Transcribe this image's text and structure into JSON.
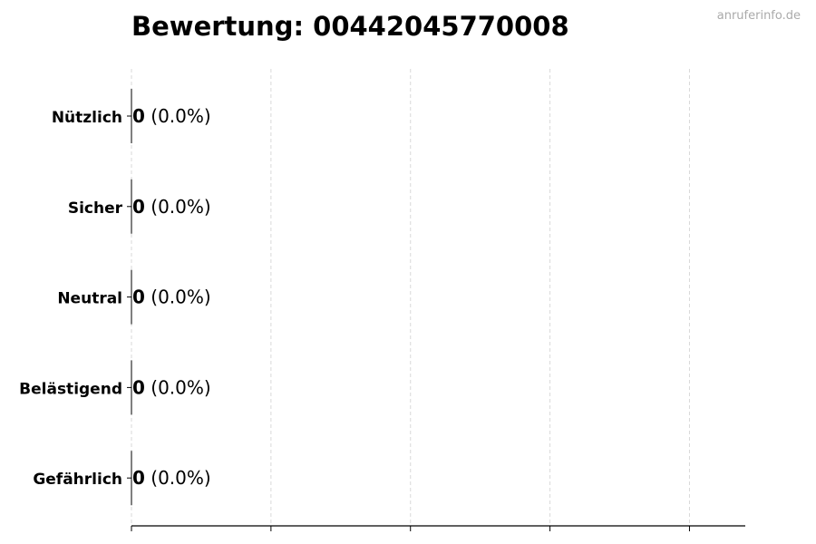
{
  "title": "Bewertung: 00442045770008",
  "watermark": "anruferinfo.de",
  "chart_data": {
    "type": "bar",
    "orientation": "horizontal",
    "title": "Bewertung: 00442045770008",
    "categories": [
      "Nützlich",
      "Sicher",
      "Neutral",
      "Belästigend",
      "Gefährlich"
    ],
    "values": [
      0,
      0,
      0,
      0,
      0
    ],
    "data_labels": [
      {
        "count": "0",
        "percent": "(0.0%)"
      },
      {
        "count": "0",
        "percent": "(0.0%)"
      },
      {
        "count": "0",
        "percent": "(0.0%)"
      },
      {
        "count": "0",
        "percent": "(0.0%)"
      },
      {
        "count": "0",
        "percent": "(0.0%)"
      }
    ],
    "xlabel": "",
    "ylabel": "",
    "xlim": [
      0,
      4.4
    ],
    "xticks": [
      0,
      1,
      2,
      3,
      4
    ],
    "xtick_labels_shown": false,
    "grid": {
      "x": true,
      "style": "dashed",
      "color": "#d9d9d9"
    },
    "bar_color": "#000000"
  }
}
